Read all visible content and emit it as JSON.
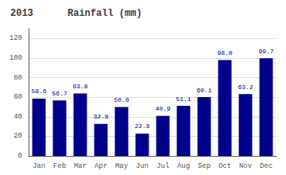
{
  "chart_data": {
    "type": "bar",
    "title": "2013      Rainfall (mm)",
    "categories": [
      "Jan",
      "Feb",
      "Mar",
      "Apr",
      "May",
      "Jun",
      "Jul",
      "Aug",
      "Sep",
      "Oct",
      "Nov",
      "Dec"
    ],
    "values": [
      58.6,
      56.7,
      63.8,
      32.8,
      50.0,
      22.8,
      40.9,
      51.1,
      60.1,
      98.0,
      63.2,
      99.7
    ],
    "value_labels": [
      "58.6",
      "56.7",
      "63.8",
      "32.8",
      "50.0",
      "22.8",
      "40.9",
      "51.1",
      "60.1",
      "98.0",
      "63.2",
      "99.7"
    ],
    "color": "#00008B",
    "ylim": [
      0,
      130
    ],
    "yticks": [
      0,
      20,
      40,
      60,
      80,
      100,
      120
    ],
    "grid": true,
    "data_labels": true
  }
}
